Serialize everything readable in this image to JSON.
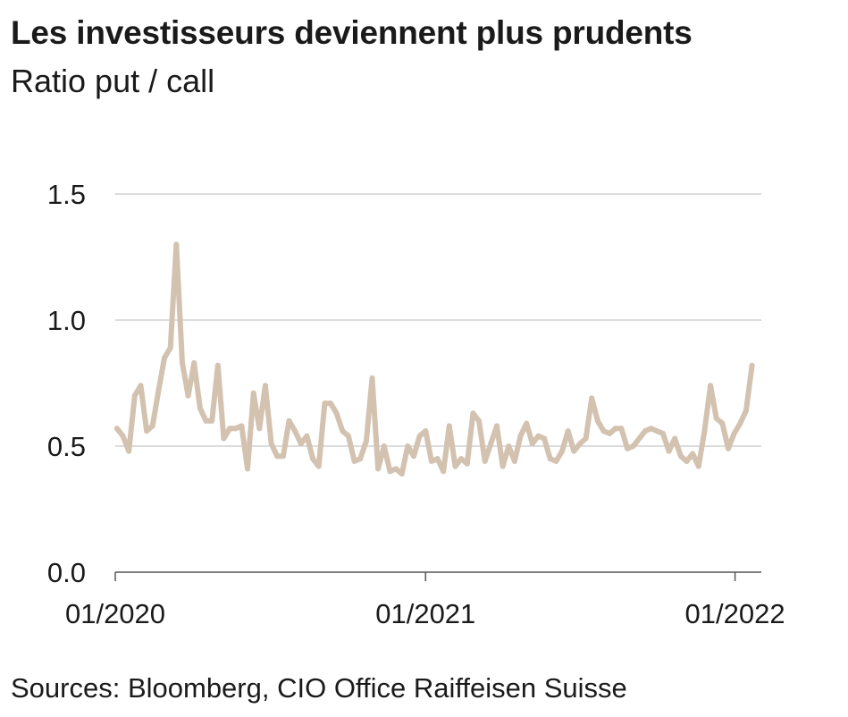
{
  "chart_data": {
    "type": "line",
    "title": "Les investisseurs deviennent plus prudents",
    "subtitle": "Ratio put / call",
    "source": "Sources: Bloomberg, CIO Office Raiffeisen Suisse",
    "xlabel": "",
    "ylabel": "",
    "ylim": [
      0,
      1.5
    ],
    "yticks": [
      {
        "value": 0.0,
        "label": "0.0"
      },
      {
        "value": 0.5,
        "label": "0.5"
      },
      {
        "value": 1.0,
        "label": "1.0"
      },
      {
        "value": 1.5,
        "label": "1.5"
      }
    ],
    "xrange": [
      "2020-01",
      "2022-02"
    ],
    "xticks": [
      {
        "value": "2020-01",
        "label": "01/2020"
      },
      {
        "value": "2021-01",
        "label": "01/2021"
      },
      {
        "value": "2022-01",
        "label": "01/2022"
      }
    ],
    "grid": true,
    "line_color": "#d3c2b0",
    "series": [
      {
        "values": [
          [
            "2020-01-03",
            0.57
          ],
          [
            "2020-01-10",
            0.54
          ],
          [
            "2020-01-17",
            0.48
          ],
          [
            "2020-01-24",
            0.7
          ],
          [
            "2020-01-31",
            0.74
          ],
          [
            "2020-02-07",
            0.56
          ],
          [
            "2020-02-14",
            0.58
          ],
          [
            "2020-02-21",
            0.72
          ],
          [
            "2020-02-28",
            0.85
          ],
          [
            "2020-03-06",
            0.89
          ],
          [
            "2020-03-13",
            1.3
          ],
          [
            "2020-03-20",
            0.83
          ],
          [
            "2020-03-27",
            0.7
          ],
          [
            "2020-04-03",
            0.83
          ],
          [
            "2020-04-10",
            0.65
          ],
          [
            "2020-04-17",
            0.6
          ],
          [
            "2020-04-24",
            0.6
          ],
          [
            "2020-05-01",
            0.82
          ],
          [
            "2020-05-08",
            0.53
          ],
          [
            "2020-05-15",
            0.57
          ],
          [
            "2020-05-22",
            0.57
          ],
          [
            "2020-05-29",
            0.58
          ],
          [
            "2020-06-05",
            0.41
          ],
          [
            "2020-06-12",
            0.71
          ],
          [
            "2020-06-19",
            0.57
          ],
          [
            "2020-06-26",
            0.74
          ],
          [
            "2020-07-03",
            0.51
          ],
          [
            "2020-07-10",
            0.46
          ],
          [
            "2020-07-17",
            0.46
          ],
          [
            "2020-07-24",
            0.6
          ],
          [
            "2020-07-31",
            0.56
          ],
          [
            "2020-08-07",
            0.51
          ],
          [
            "2020-08-14",
            0.54
          ],
          [
            "2020-08-21",
            0.45
          ],
          [
            "2020-08-28",
            0.42
          ],
          [
            "2020-09-04",
            0.67
          ],
          [
            "2020-09-11",
            0.67
          ],
          [
            "2020-09-18",
            0.63
          ],
          [
            "2020-09-25",
            0.56
          ],
          [
            "2020-10-02",
            0.54
          ],
          [
            "2020-10-09",
            0.44
          ],
          [
            "2020-10-16",
            0.45
          ],
          [
            "2020-10-23",
            0.52
          ],
          [
            "2020-10-30",
            0.77
          ],
          [
            "2020-11-06",
            0.41
          ],
          [
            "2020-11-13",
            0.5
          ],
          [
            "2020-11-20",
            0.4
          ],
          [
            "2020-11-27",
            0.41
          ],
          [
            "2020-12-04",
            0.39
          ],
          [
            "2020-12-11",
            0.5
          ],
          [
            "2020-12-18",
            0.46
          ],
          [
            "2020-12-25",
            0.54
          ],
          [
            "2021-01-01",
            0.56
          ],
          [
            "2021-01-08",
            0.44
          ],
          [
            "2021-01-15",
            0.45
          ],
          [
            "2021-01-22",
            0.4
          ],
          [
            "2021-01-29",
            0.58
          ],
          [
            "2021-02-05",
            0.42
          ],
          [
            "2021-02-12",
            0.45
          ],
          [
            "2021-02-19",
            0.43
          ],
          [
            "2021-02-26",
            0.63
          ],
          [
            "2021-03-05",
            0.6
          ],
          [
            "2021-03-12",
            0.44
          ],
          [
            "2021-03-19",
            0.51
          ],
          [
            "2021-03-26",
            0.58
          ],
          [
            "2021-04-02",
            0.42
          ],
          [
            "2021-04-09",
            0.5
          ],
          [
            "2021-04-16",
            0.44
          ],
          [
            "2021-04-23",
            0.54
          ],
          [
            "2021-04-30",
            0.59
          ],
          [
            "2021-05-07",
            0.51
          ],
          [
            "2021-05-14",
            0.54
          ],
          [
            "2021-05-21",
            0.53
          ],
          [
            "2021-05-28",
            0.45
          ],
          [
            "2021-06-04",
            0.44
          ],
          [
            "2021-06-11",
            0.48
          ],
          [
            "2021-06-18",
            0.56
          ],
          [
            "2021-06-25",
            0.48
          ],
          [
            "2021-07-02",
            0.51
          ],
          [
            "2021-07-09",
            0.53
          ],
          [
            "2021-07-16",
            0.69
          ],
          [
            "2021-07-23",
            0.6
          ],
          [
            "2021-07-30",
            0.56
          ],
          [
            "2021-08-06",
            0.55
          ],
          [
            "2021-08-13",
            0.57
          ],
          [
            "2021-08-20",
            0.57
          ],
          [
            "2021-08-27",
            0.49
          ],
          [
            "2021-09-03",
            0.5
          ],
          [
            "2021-09-10",
            0.53
          ],
          [
            "2021-09-17",
            0.56
          ],
          [
            "2021-09-24",
            0.57
          ],
          [
            "2021-10-01",
            0.56
          ],
          [
            "2021-10-08",
            0.55
          ],
          [
            "2021-10-15",
            0.48
          ],
          [
            "2021-10-22",
            0.53
          ],
          [
            "2021-10-29",
            0.46
          ],
          [
            "2021-11-05",
            0.44
          ],
          [
            "2021-11-12",
            0.47
          ],
          [
            "2021-11-19",
            0.42
          ],
          [
            "2021-11-26",
            0.56
          ],
          [
            "2021-12-03",
            0.74
          ],
          [
            "2021-12-10",
            0.61
          ],
          [
            "2021-12-17",
            0.59
          ],
          [
            "2021-12-24",
            0.49
          ],
          [
            "2021-12-31",
            0.55
          ],
          [
            "2022-01-07",
            0.59
          ],
          [
            "2022-01-14",
            0.64
          ],
          [
            "2022-01-21",
            0.82
          ]
        ]
      }
    ]
  }
}
